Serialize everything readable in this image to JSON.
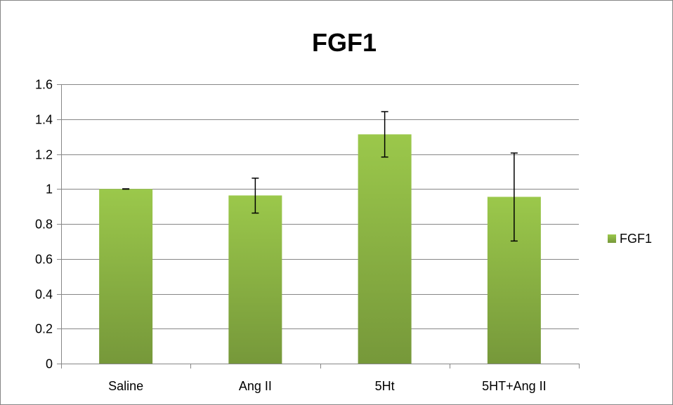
{
  "chart_data": {
    "type": "bar",
    "title": "FGF1",
    "categories": [
      "Saline",
      "Ang II",
      "5Ht",
      "5HT+Ang II"
    ],
    "series": [
      {
        "name": "FGF1",
        "values": [
          1.0,
          0.963,
          1.313,
          0.955
        ],
        "error_low": [
          0.999,
          0.862,
          1.183,
          0.702
        ],
        "error_high": [
          1.001,
          1.062,
          1.443,
          1.206
        ],
        "color": "#8db640",
        "color_light": "#9bc84b",
        "color_dark": "#76983a"
      }
    ],
    "ylim": [
      0,
      1.6
    ],
    "yticks": [
      {
        "value": 0,
        "label": "0"
      },
      {
        "value": 0.2,
        "label": "0.2"
      },
      {
        "value": 0.4,
        "label": "0.4"
      },
      {
        "value": 0.6,
        "label": "0.6"
      },
      {
        "value": 0.8,
        "label": "0.8"
      },
      {
        "value": 1.0,
        "label": "1"
      },
      {
        "value": 1.2,
        "label": "1.2"
      },
      {
        "value": 1.4,
        "label": "1.4"
      },
      {
        "value": 1.6,
        "label": "1.6"
      }
    ],
    "grid": true,
    "gridline_color": "#868686",
    "legend_position": "right",
    "xlabel": "",
    "ylabel": ""
  }
}
